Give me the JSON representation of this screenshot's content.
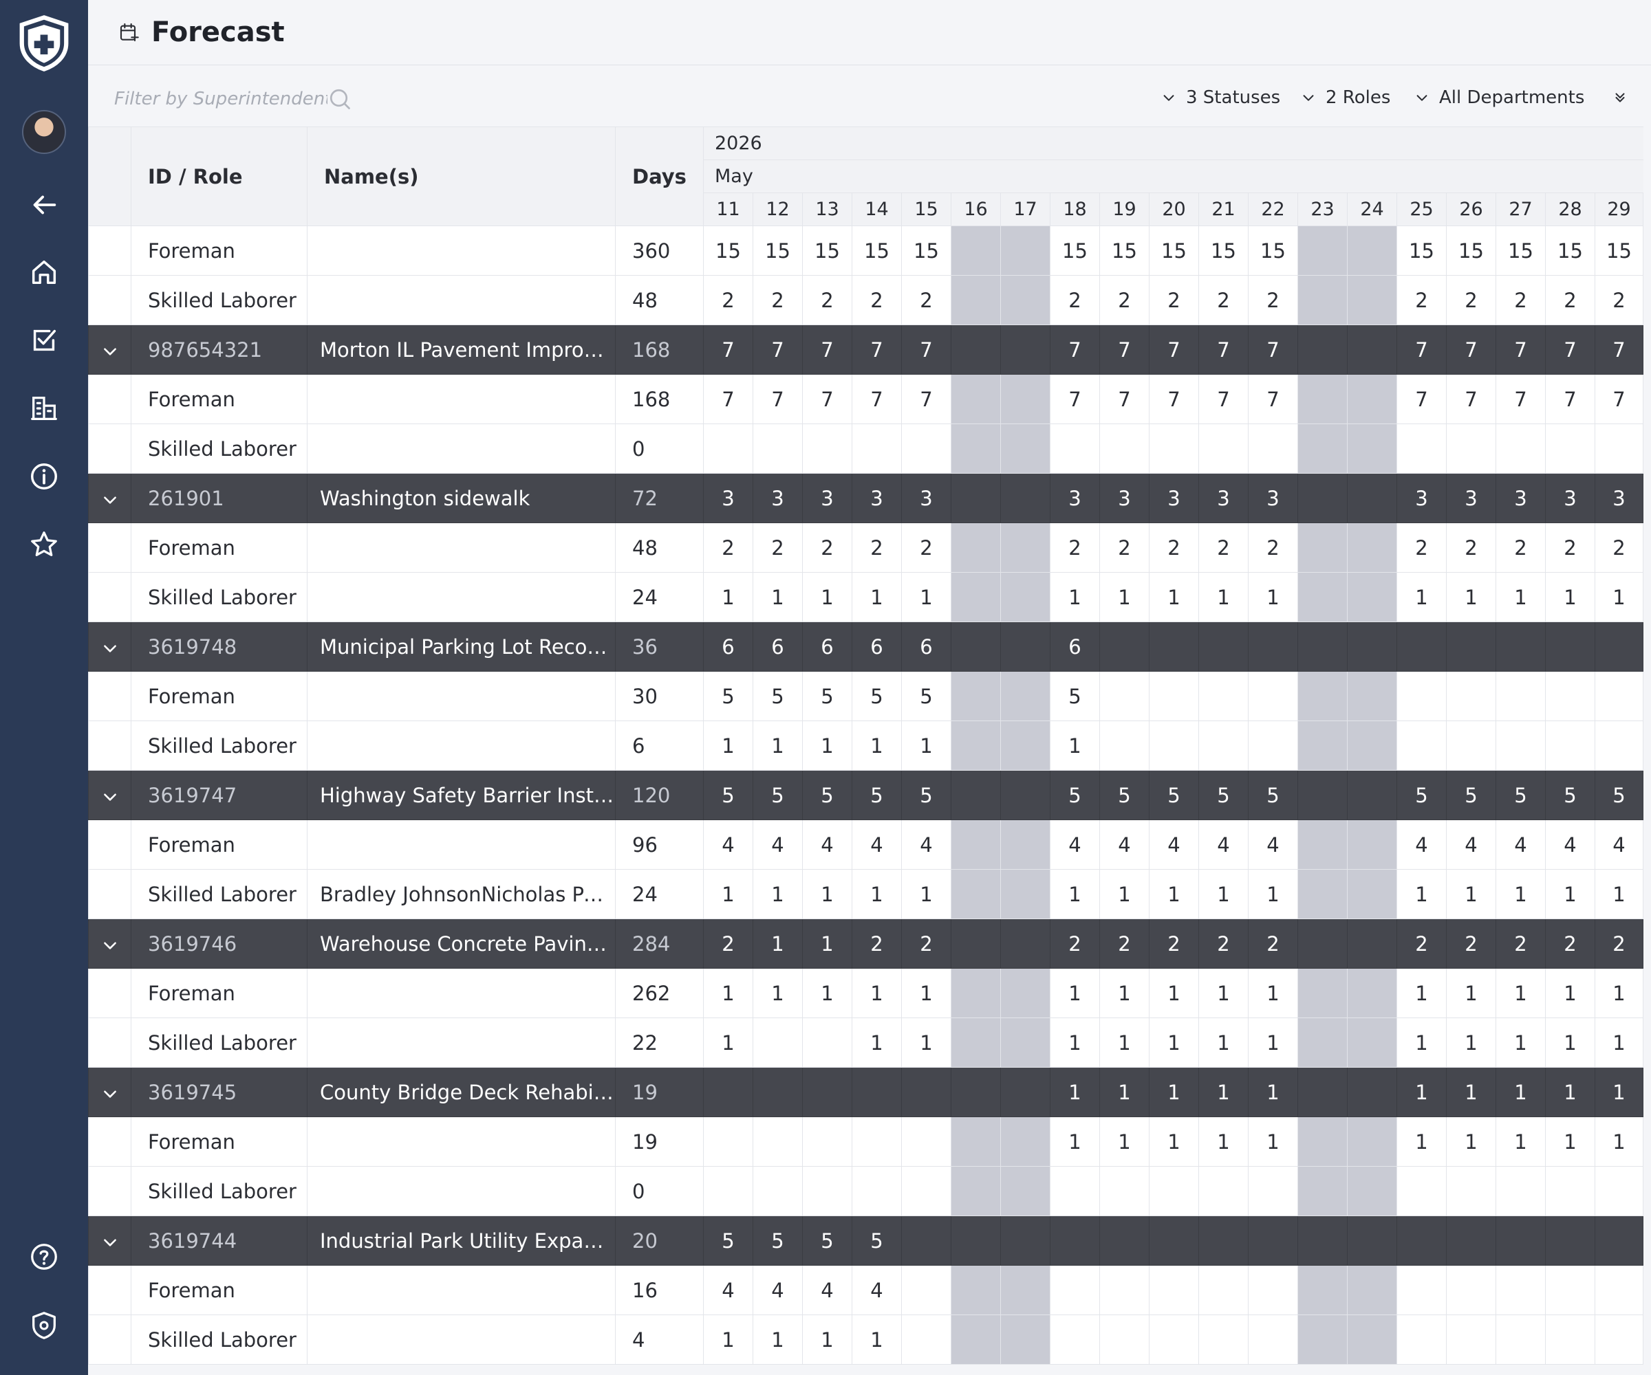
{
  "app": {
    "page_title": "Forecast"
  },
  "sidebar": {
    "items": [
      {
        "name": "back-arrow-icon"
      },
      {
        "name": "home-icon"
      },
      {
        "name": "tasks-checkbox-icon"
      },
      {
        "name": "buildings-icon"
      },
      {
        "name": "info-icon"
      },
      {
        "name": "star-icon"
      },
      {
        "name": "help-icon"
      },
      {
        "name": "shield-settings-icon"
      }
    ],
    "colors": {
      "background": "#2b3a56"
    }
  },
  "toolbar": {
    "filter_placeholder": "Filter by Superintendent",
    "statuses_label": "3 Statuses",
    "roles_label": "2 Roles",
    "departments_label": "All Departments"
  },
  "grid": {
    "headers": {
      "id_role": "ID / Role",
      "names": "Name(s)",
      "days": "Days"
    },
    "year": "2026",
    "month": "May",
    "day_numbers": [
      "11",
      "12",
      "13",
      "14",
      "15",
      "16",
      "17",
      "18",
      "19",
      "20",
      "21",
      "22",
      "23",
      "24",
      "25",
      "26",
      "27",
      "28",
      "29"
    ],
    "weekend_index": [
      5,
      6,
      12,
      13
    ],
    "rows": [
      {
        "type": "role",
        "role": "Foreman",
        "names": "",
        "days": "360",
        "values": [
          "15",
          "15",
          "15",
          "15",
          "15",
          "",
          "",
          "15",
          "15",
          "15",
          "15",
          "15",
          "",
          "",
          "15",
          "15",
          "15",
          "15",
          "15"
        ]
      },
      {
        "type": "role",
        "role": "Skilled Laborer",
        "names": "",
        "days": "48",
        "values": [
          "2",
          "2",
          "2",
          "2",
          "2",
          "",
          "",
          "2",
          "2",
          "2",
          "2",
          "2",
          "",
          "",
          "2",
          "2",
          "2",
          "2",
          "2"
        ]
      },
      {
        "type": "project",
        "id": "987654321",
        "names": "Morton IL Pavement Improve...",
        "days": "168",
        "values": [
          "7",
          "7",
          "7",
          "7",
          "7",
          "",
          "",
          "7",
          "7",
          "7",
          "7",
          "7",
          "",
          "",
          "7",
          "7",
          "7",
          "7",
          "7"
        ]
      },
      {
        "type": "role",
        "role": "Foreman",
        "names": "",
        "days": "168",
        "values": [
          "7",
          "7",
          "7",
          "7",
          "7",
          "",
          "",
          "7",
          "7",
          "7",
          "7",
          "7",
          "",
          "",
          "7",
          "7",
          "7",
          "7",
          "7"
        ]
      },
      {
        "type": "role",
        "role": "Skilled Laborer",
        "names": "",
        "days": "0",
        "values": [
          "",
          "",
          "",
          "",
          "",
          "",
          "",
          "",
          "",
          "",
          "",
          "",
          "",
          "",
          "",
          "",
          "",
          "",
          ""
        ]
      },
      {
        "type": "project",
        "id": "261901",
        "names": "Washington sidewalk",
        "days": "72",
        "values": [
          "3",
          "3",
          "3",
          "3",
          "3",
          "",
          "",
          "3",
          "3",
          "3",
          "3",
          "3",
          "",
          "",
          "3",
          "3",
          "3",
          "3",
          "3"
        ]
      },
      {
        "type": "role",
        "role": "Foreman",
        "names": "",
        "days": "48",
        "values": [
          "2",
          "2",
          "2",
          "2",
          "2",
          "",
          "",
          "2",
          "2",
          "2",
          "2",
          "2",
          "",
          "",
          "2",
          "2",
          "2",
          "2",
          "2"
        ]
      },
      {
        "type": "role",
        "role": "Skilled Laborer",
        "names": "",
        "days": "24",
        "values": [
          "1",
          "1",
          "1",
          "1",
          "1",
          "",
          "",
          "1",
          "1",
          "1",
          "1",
          "1",
          "",
          "",
          "1",
          "1",
          "1",
          "1",
          "1"
        ]
      },
      {
        "type": "project",
        "id": "3619748",
        "names": "Municipal Parking Lot Recons...",
        "days": "36",
        "values": [
          "6",
          "6",
          "6",
          "6",
          "6",
          "",
          "",
          "6",
          "",
          "",
          "",
          "",
          "",
          "",
          "",
          "",
          "",
          "",
          ""
        ]
      },
      {
        "type": "role",
        "role": "Foreman",
        "names": "",
        "days": "30",
        "values": [
          "5",
          "5",
          "5",
          "5",
          "5",
          "",
          "",
          "5",
          "",
          "",
          "",
          "",
          "",
          "",
          "",
          "",
          "",
          "",
          ""
        ]
      },
      {
        "type": "role",
        "role": "Skilled Laborer",
        "names": "",
        "days": "6",
        "values": [
          "1",
          "1",
          "1",
          "1",
          "1",
          "",
          "",
          "1",
          "",
          "",
          "",
          "",
          "",
          "",
          "",
          "",
          "",
          "",
          ""
        ]
      },
      {
        "type": "project",
        "id": "3619747",
        "names": "Highway Safety Barrier Install...",
        "days": "120",
        "values": [
          "5",
          "5",
          "5",
          "5",
          "5",
          "",
          "",
          "5",
          "5",
          "5",
          "5",
          "5",
          "",
          "",
          "5",
          "5",
          "5",
          "5",
          "5"
        ]
      },
      {
        "type": "role",
        "role": "Foreman",
        "names": "",
        "days": "96",
        "values": [
          "4",
          "4",
          "4",
          "4",
          "4",
          "",
          "",
          "4",
          "4",
          "4",
          "4",
          "4",
          "",
          "",
          "4",
          "4",
          "4",
          "4",
          "4"
        ]
      },
      {
        "type": "role",
        "role": "Skilled Laborer",
        "names": "Bradley JohnsonNicholas Perez",
        "days": "24",
        "values": [
          "1",
          "1",
          "1",
          "1",
          "1",
          "",
          "",
          "1",
          "1",
          "1",
          "1",
          "1",
          "",
          "",
          "1",
          "1",
          "1",
          "1",
          "1"
        ]
      },
      {
        "type": "project",
        "id": "3619746",
        "names": "Warehouse Concrete Paving P...",
        "days": "284",
        "values": [
          "2",
          "1",
          "1",
          "2",
          "2",
          "",
          "",
          "2",
          "2",
          "2",
          "2",
          "2",
          "",
          "",
          "2",
          "2",
          "2",
          "2",
          "2"
        ]
      },
      {
        "type": "role",
        "role": "Foreman",
        "names": "",
        "days": "262",
        "values": [
          "1",
          "1",
          "1",
          "1",
          "1",
          "",
          "",
          "1",
          "1",
          "1",
          "1",
          "1",
          "",
          "",
          "1",
          "1",
          "1",
          "1",
          "1"
        ]
      },
      {
        "type": "role",
        "role": "Skilled Laborer",
        "names": "",
        "days": "22",
        "values": [
          "1",
          "",
          "",
          "1",
          "1",
          "",
          "",
          "1",
          "1",
          "1",
          "1",
          "1",
          "",
          "",
          "1",
          "1",
          "1",
          "1",
          "1"
        ]
      },
      {
        "type": "project",
        "id": "3619745",
        "names": "County Bridge Deck Rehabilit...",
        "days": "19",
        "values": [
          "",
          "",
          "",
          "",
          "",
          "",
          "",
          "1",
          "1",
          "1",
          "1",
          "1",
          "",
          "",
          "1",
          "1",
          "1",
          "1",
          "1"
        ]
      },
      {
        "type": "role",
        "role": "Foreman",
        "names": "",
        "days": "19",
        "values": [
          "",
          "",
          "",
          "",
          "",
          "",
          "",
          "1",
          "1",
          "1",
          "1",
          "1",
          "",
          "",
          "1",
          "1",
          "1",
          "1",
          "1"
        ]
      },
      {
        "type": "role",
        "role": "Skilled Laborer",
        "names": "",
        "days": "0",
        "values": [
          "",
          "",
          "",
          "",
          "",
          "",
          "",
          "",
          "",
          "",
          "",
          "",
          "",
          "",
          "",
          "",
          "",
          "",
          ""
        ]
      },
      {
        "type": "project",
        "id": "3619744",
        "names": "Industrial Park Utility Expansion",
        "days": "20",
        "values": [
          "5",
          "5",
          "5",
          "5",
          "",
          "",
          "",
          "",
          "",
          "",
          "",
          "",
          "",
          "",
          "",
          "",
          "",
          "",
          ""
        ]
      },
      {
        "type": "role",
        "role": "Foreman",
        "names": "",
        "days": "16",
        "values": [
          "4",
          "4",
          "4",
          "4",
          "",
          "",
          "",
          "",
          "",
          "",
          "",
          "",
          "",
          "",
          "",
          "",
          "",
          "",
          ""
        ]
      },
      {
        "type": "role",
        "role": "Skilled Laborer",
        "names": "",
        "days": "4",
        "values": [
          "1",
          "1",
          "1",
          "1",
          "",
          "",
          "",
          "",
          "",
          "",
          "",
          "",
          "",
          "",
          "",
          "",
          "",
          "",
          ""
        ]
      }
    ]
  },
  "colors": {
    "project_row": "#45474e",
    "weekend_cell": "#c9cbd4",
    "header_bg": "#f1f2f5"
  }
}
